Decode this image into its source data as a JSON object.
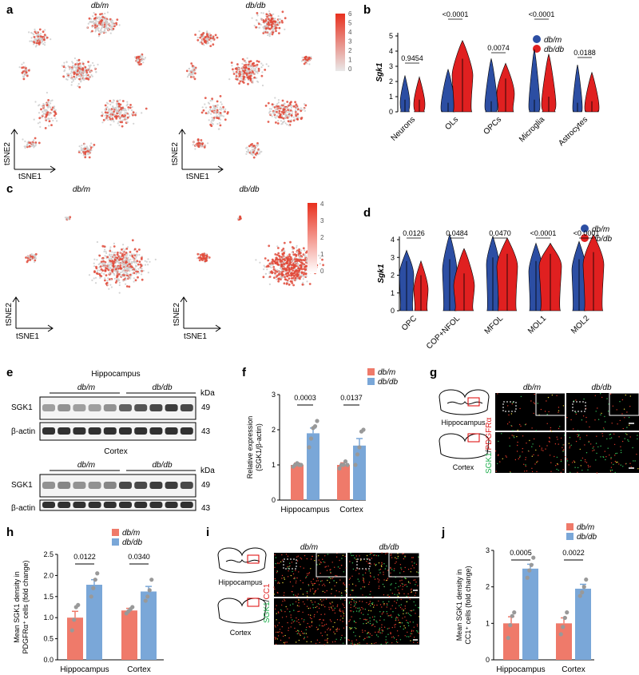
{
  "colors": {
    "dbm": "#2c4ea3",
    "dbdb": "#e02020",
    "dbm_bar": "#ef7a6a",
    "dbdb_bar": "#7aa7d8",
    "point": "#999999"
  },
  "groups": {
    "dbm": "db/m",
    "dbdb": "db/db"
  },
  "panels": {
    "a": {
      "letter": "a",
      "title_left": "db/m",
      "title_right": "db/db",
      "axis_x": "tSNE1",
      "axis_y": "tSNE2",
      "colorbar_ticks": [
        "6",
        "5",
        "4",
        "3",
        "2",
        "1",
        "0"
      ]
    },
    "b": {
      "letter": "b",
      "ylabel": "Sgk1",
      "yticks": [
        "0",
        "1",
        "2",
        "3",
        "4",
        "5"
      ],
      "categories": [
        "Neurons",
        "OLs",
        "OPCs",
        "Microglia",
        "Astrocytes"
      ],
      "pvalues": [
        "0.9454",
        "<0.0001",
        "0.0074",
        "<0.0001",
        "0.0188"
      ]
    },
    "c": {
      "letter": "c",
      "title_left": "db/m",
      "title_right": "db/db",
      "axis_x": "tSNE1",
      "axis_y": "tSNE2",
      "colorbar_ticks": [
        "4",
        "3",
        "2",
        "1",
        "0"
      ]
    },
    "d": {
      "letter": "d",
      "ylabel": "Sgk1",
      "yticks": [
        "0",
        "1",
        "2",
        "3",
        "4"
      ],
      "categories": [
        "OPC",
        "COP+NFOL",
        "MFOL",
        "MOL1",
        "MOL2"
      ],
      "pvalues": [
        "0.0126",
        "0.0484",
        "0.0470",
        "<0.0001",
        "<0.0001"
      ]
    },
    "e": {
      "letter": "e",
      "region1": "Hippocampus",
      "region2": "Cortex",
      "kda": "kDa",
      "bands": [
        "SGK1",
        "β-actin"
      ],
      "mw": [
        "49",
        "43"
      ]
    },
    "f": {
      "letter": "f",
      "ylabel1": "Relative expression",
      "ylabel2": "(SGK1/β-actin)",
      "yticks": [
        "0",
        "1",
        "2",
        "3"
      ],
      "categories": [
        "Hippocampus",
        "Cortex"
      ],
      "pvalues": [
        "0.0003",
        "0.0137"
      ]
    },
    "g": {
      "letter": "g",
      "stain_a": "SGK1",
      "stain_b": "PDGFRα",
      "region1": "Hippocampus",
      "region2": "Cortex"
    },
    "h": {
      "letter": "h",
      "ylabel1": "Mean SGK1 density in",
      "ylabel2": "PDGFRα⁺ cells (fold change)",
      "yticks": [
        "0.0",
        "0.5",
        "1.0",
        "1.5",
        "2.0",
        "2.5"
      ],
      "categories": [
        "Hippocampus",
        "Cortex"
      ],
      "pvalues": [
        "0.0122",
        "0.0340"
      ]
    },
    "i": {
      "letter": "i",
      "stain_a": "SGK1",
      "stain_b": "CC1",
      "region1": "Hippocampus",
      "region2": "Cortex"
    },
    "j": {
      "letter": "j",
      "ylabel1": "Mean SGK1 density in",
      "ylabel2": "CC1⁺ cells (fold change)",
      "yticks": [
        "0",
        "1",
        "2",
        "3"
      ],
      "categories": [
        "Hippocampus",
        "Cortex"
      ],
      "pvalues": [
        "0.0005",
        "0.0022"
      ]
    }
  },
  "chart_data": [
    {
      "panel": "f",
      "type": "bar",
      "categories": [
        "Hippocampus",
        "Cortex"
      ],
      "ylim": [
        0,
        3
      ],
      "series": [
        {
          "name": "db/m",
          "values": [
            1.0,
            1.0
          ],
          "err": [
            0.05,
            0.06
          ],
          "points": [
            [
              0.95,
              1.0,
              1.05,
              1.0,
              1.0
            ],
            [
              0.9,
              1.0,
              1.0,
              1.1,
              1.0
            ]
          ]
        },
        {
          "name": "db/db",
          "values": [
            1.9,
            1.55
          ],
          "err": [
            0.15,
            0.2
          ],
          "points": [
            [
              1.5,
              1.75,
              2.05,
              2.1,
              2.25
            ],
            [
              1.0,
              1.3,
              1.5,
              1.95,
              2.0
            ]
          ]
        }
      ]
    },
    {
      "panel": "h",
      "type": "bar",
      "categories": [
        "Hippocampus",
        "Cortex"
      ],
      "ylim": [
        0,
        2.5
      ],
      "series": [
        {
          "name": "db/m",
          "values": [
            1.0,
            1.17
          ],
          "err": [
            0.15,
            0.05
          ],
          "points": [
            [
              0.7,
              0.95,
              1.25,
              1.3
            ],
            [
              1.1,
              1.15,
              1.2,
              1.25
            ]
          ]
        },
        {
          "name": "db/db",
          "values": [
            1.78,
            1.62
          ],
          "err": [
            0.12,
            0.12
          ],
          "points": [
            [
              1.5,
              1.7,
              1.9,
              2.05
            ],
            [
              1.4,
              1.5,
              1.65,
              1.9
            ]
          ]
        }
      ]
    },
    {
      "panel": "j",
      "type": "bar",
      "categories": [
        "Hippocampus",
        "Cortex"
      ],
      "ylim": [
        0,
        3
      ],
      "series": [
        {
          "name": "db/m",
          "values": [
            1.0,
            1.0
          ],
          "err": [
            0.18,
            0.15
          ],
          "points": [
            [
              0.6,
              0.95,
              1.2,
              1.3
            ],
            [
              0.7,
              0.9,
              1.15,
              1.3
            ]
          ]
        },
        {
          "name": "db/db",
          "values": [
            2.5,
            1.95
          ],
          "err": [
            0.12,
            0.12
          ],
          "points": [
            [
              2.25,
              2.45,
              2.6,
              2.8
            ],
            [
              1.75,
              1.85,
              2.0,
              2.2
            ]
          ]
        }
      ]
    }
  ]
}
